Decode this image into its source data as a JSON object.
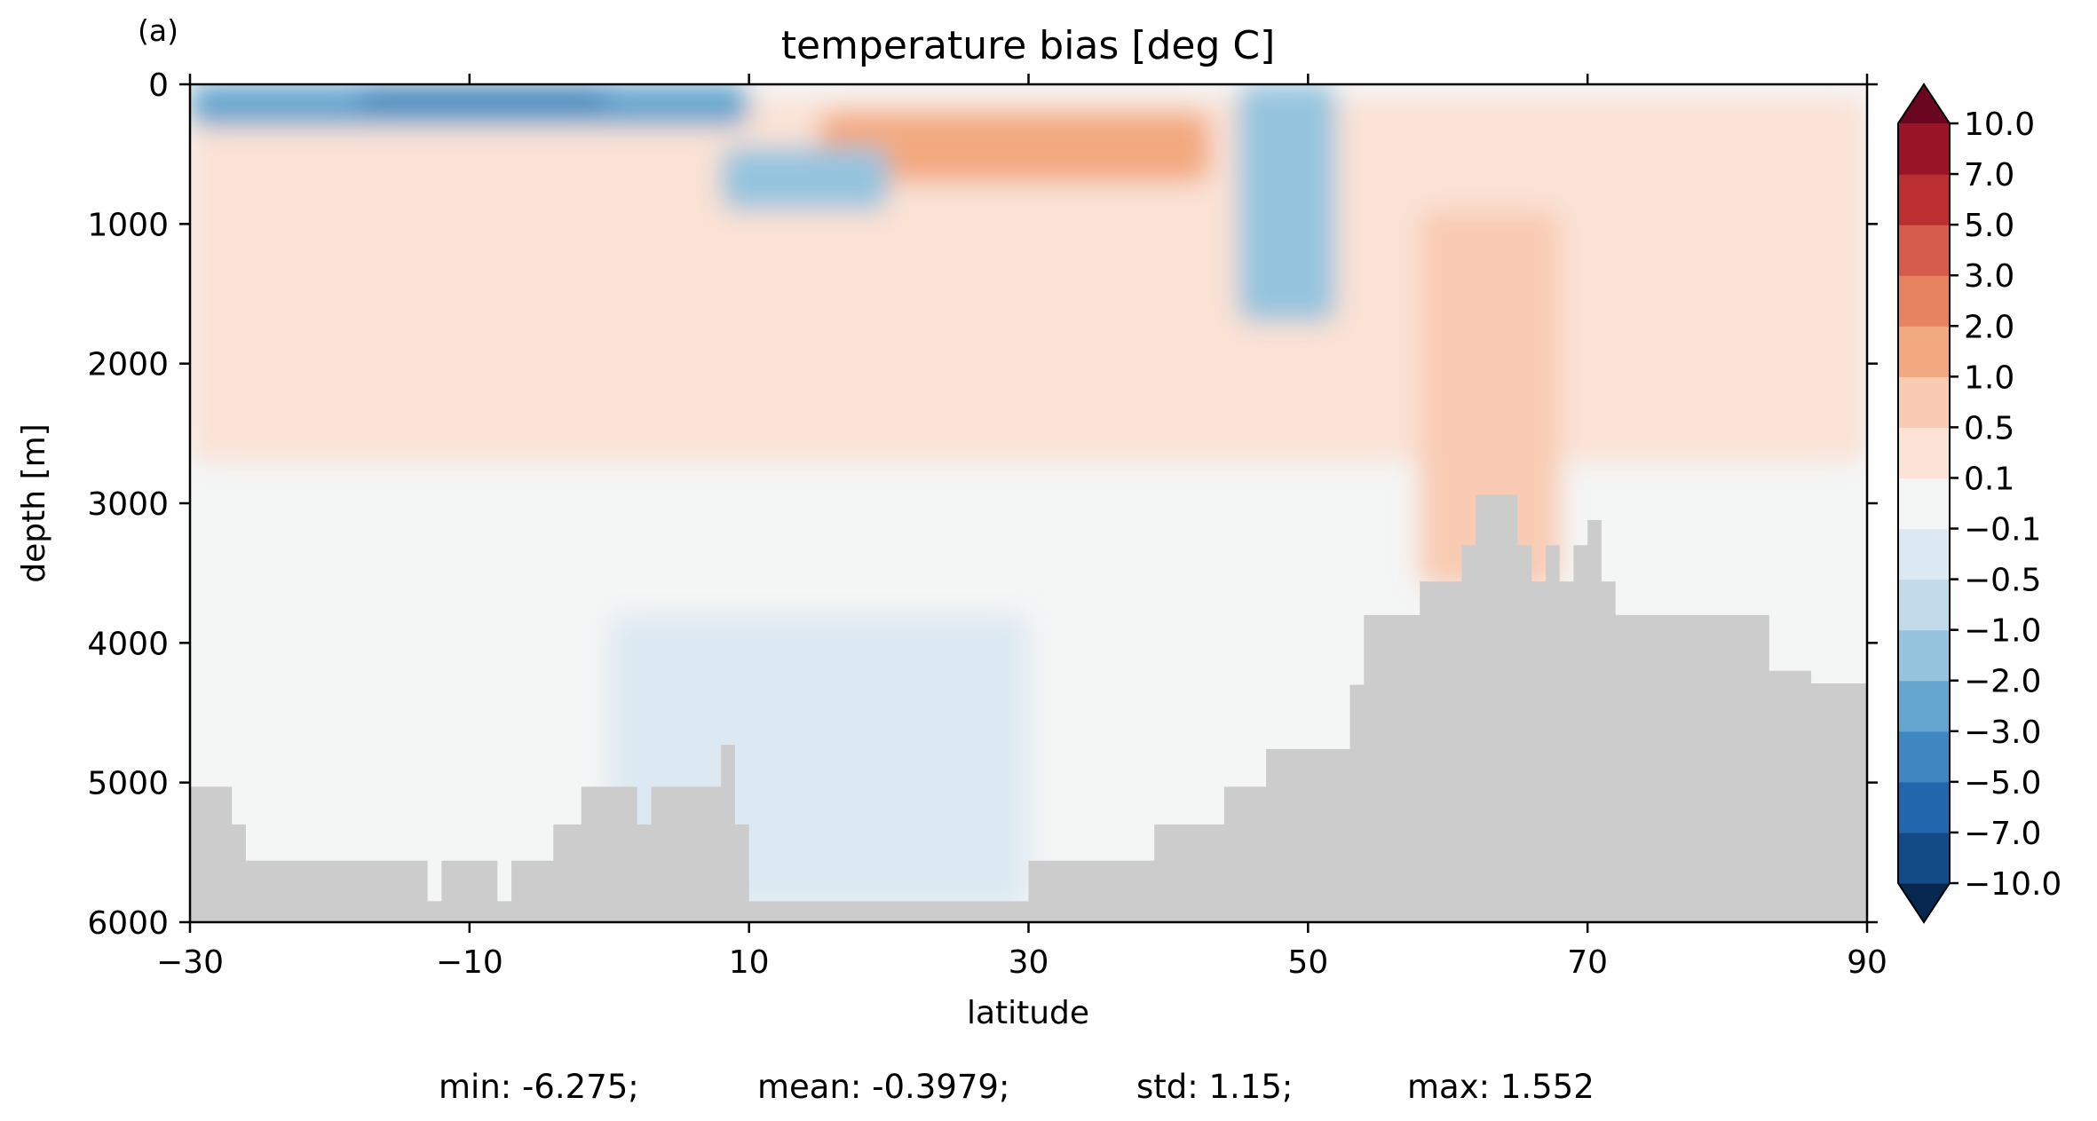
{
  "panel_label": "(a)",
  "stats_line": {
    "min": "min: -6.275;",
    "mean": "mean: -0.3979;",
    "std": "std: 1.15;",
    "max": "max: 1.552"
  },
  "chart_data": {
    "type": "heatmap",
    "title": "temperature bias [deg C]",
    "xlabel": "latitude",
    "ylabel": "depth [m]",
    "xlim": [
      -30,
      90
    ],
    "ylim": [
      6000,
      0
    ],
    "y_inverted": true,
    "x_ticks": [
      -30,
      -10,
      10,
      30,
      50,
      70,
      90
    ],
    "x_tick_labels": [
      "−30",
      "−10",
      "10",
      "30",
      "50",
      "70",
      "90"
    ],
    "y_ticks": [
      0,
      1000,
      2000,
      3000,
      4000,
      5000,
      6000
    ],
    "y_tick_labels": [
      "0",
      "1000",
      "2000",
      "3000",
      "4000",
      "5000",
      "6000"
    ],
    "grid": false,
    "missing_color": "#cccccc",
    "colorbar": {
      "levels": [
        -10.0,
        -7.0,
        -5.0,
        -3.0,
        -2.0,
        -1.0,
        -0.5,
        -0.1,
        0.1,
        0.5,
        1.0,
        2.0,
        3.0,
        5.0,
        7.0,
        10.0
      ],
      "tick_labels": [
        "−10.0",
        "−7.0",
        "−5.0",
        "−3.0",
        "−2.0",
        "−1.0",
        "−0.5",
        "−0.1",
        "0.1",
        "0.5",
        "1.0",
        "2.0",
        "3.0",
        "5.0",
        "7.0",
        "10.0"
      ],
      "colors": [
        "#134b86",
        "#2266ad",
        "#3f87c0",
        "#65a6cf",
        "#95c4de",
        "#c1dbeb",
        "#dde9f2",
        "#f4f5f5",
        "#fae2d5",
        "#f9cbb3",
        "#f3a97f",
        "#e7845f",
        "#d35c4a",
        "#bb2f33",
        "#9a1428"
      ],
      "extend_low_color": "#06284f",
      "extend_high_color": "#6a0620",
      "extend": "both"
    },
    "bathymetry_depth": [
      [
        -30,
        5030
      ],
      [
        -28,
        5030
      ],
      [
        -27,
        5300
      ],
      [
        -26,
        5560
      ],
      [
        -14,
        5560
      ],
      [
        -13,
        5850
      ],
      [
        -12,
        5560
      ],
      [
        -9,
        5560
      ],
      [
        -8,
        5850
      ],
      [
        -7,
        5560
      ],
      [
        -5,
        5560
      ],
      [
        -4,
        5300
      ],
      [
        -2,
        5030
      ],
      [
        1,
        5030
      ],
      [
        2,
        5300
      ],
      [
        3,
        5030
      ],
      [
        7,
        5030
      ],
      [
        8,
        4730
      ],
      [
        9,
        5300
      ],
      [
        10,
        5850
      ],
      [
        15,
        5850
      ],
      [
        20,
        5850
      ],
      [
        29,
        5850
      ],
      [
        30,
        5560
      ],
      [
        38,
        5560
      ],
      [
        39,
        5300
      ],
      [
        43,
        5300
      ],
      [
        44,
        5030
      ],
      [
        46,
        5030
      ],
      [
        47,
        4760
      ],
      [
        52,
        4760
      ],
      [
        53,
        4300
      ],
      [
        54,
        3800
      ],
      [
        57,
        3800
      ],
      [
        58,
        3560
      ],
      [
        60,
        3560
      ],
      [
        61,
        3300
      ],
      [
        62,
        2940
      ],
      [
        64,
        2940
      ],
      [
        65,
        3300
      ],
      [
        66,
        3560
      ],
      [
        67,
        3300
      ],
      [
        68,
        3560
      ],
      [
        69,
        3300
      ],
      [
        70,
        3120
      ],
      [
        71,
        3560
      ],
      [
        72,
        3800
      ],
      [
        82,
        3800
      ],
      [
        83,
        4200
      ],
      [
        86,
        4290
      ],
      [
        90,
        4270
      ]
    ],
    "bias_field": [
      {
        "x": [
          -30,
          90
        ],
        "y": [
          100,
          2700
        ],
        "value": 0.3
      },
      {
        "x": [
          -30,
          10
        ],
        "y": [
          0,
          300
        ],
        "value": -2.5
      },
      {
        "x": [
          -18,
          0
        ],
        "y": [
          60,
          150
        ],
        "value": -5.5
      },
      {
        "x": [
          15,
          43
        ],
        "y": [
          200,
          700
        ],
        "value": 1.5
      },
      {
        "x": [
          8,
          20
        ],
        "y": [
          450,
          900
        ],
        "value": -1.5
      },
      {
        "x": [
          45,
          52
        ],
        "y": [
          0,
          1700
        ],
        "value": -1.5
      },
      {
        "x": [
          58,
          68
        ],
        "y": [
          900,
          3600
        ],
        "value": 0.8
      },
      {
        "x": [
          0,
          30
        ],
        "y": [
          3800,
          5900
        ],
        "value": -0.3
      }
    ]
  }
}
